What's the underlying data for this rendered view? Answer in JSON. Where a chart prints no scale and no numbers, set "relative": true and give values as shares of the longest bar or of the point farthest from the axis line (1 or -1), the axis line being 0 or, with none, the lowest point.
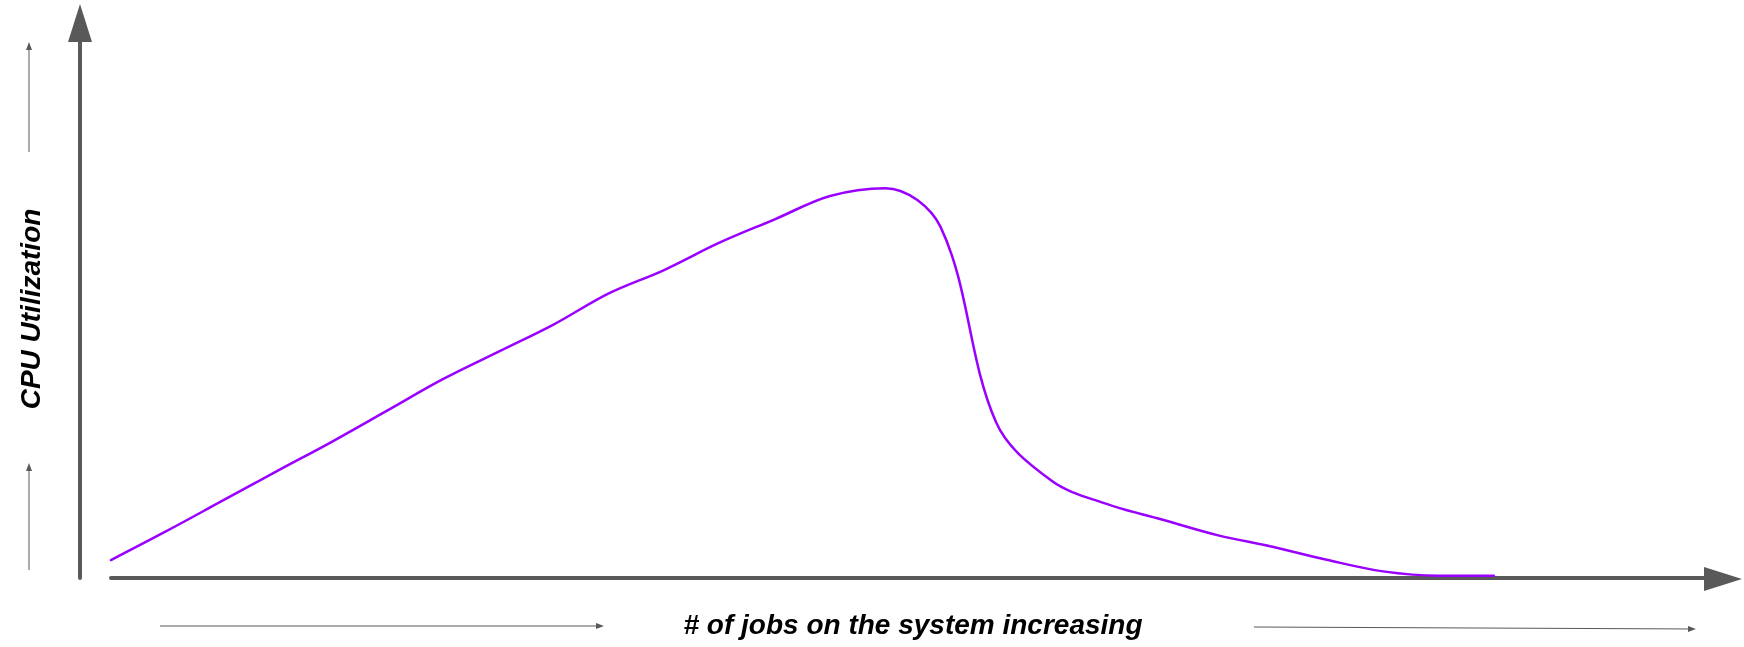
{
  "chart_data": {
    "type": "line",
    "xlabel": "# of jobs on the system increasing",
    "ylabel": "CPU Utilization",
    "relative": true,
    "categories": [
      null,
      null,
      null,
      null,
      null,
      null,
      null,
      null,
      null,
      null,
      null,
      null,
      null,
      null,
      null,
      null,
      null,
      null,
      null,
      null,
      null,
      null,
      null,
      null,
      null,
      null
    ],
    "series": [
      {
        "color": "#9900ff",
        "values": [
          0.046,
          0.12,
          0.197,
          0.274,
          0.35,
          0.43,
          0.51,
          0.58,
          0.65,
          0.73,
          0.79,
          0.86,
          0.92,
          0.98,
          1.0,
          0.9,
          0.4,
          0.25,
          0.19,
          0.15,
          0.11,
          0.08,
          0.046,
          0.017,
          0.006,
          0.006
        ]
      }
    ],
    "grid": false,
    "marker": "none",
    "line_style": "solid"
  }
}
